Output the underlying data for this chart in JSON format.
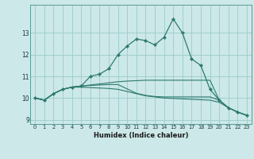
{
  "title": "",
  "xlabel": "Humidex (Indice chaleur)",
  "ylabel": "",
  "background_color": "#cce8e8",
  "grid_color": "#99cccc",
  "line_color": "#2d7a6e",
  "xlim": [
    -0.5,
    23.5
  ],
  "ylim": [
    8.8,
    14.3
  ],
  "yticks": [
    9,
    10,
    11,
    12,
    13
  ],
  "xticks": [
    0,
    1,
    2,
    3,
    4,
    5,
    6,
    7,
    8,
    9,
    10,
    11,
    12,
    13,
    14,
    15,
    16,
    17,
    18,
    19,
    20,
    21,
    22,
    23
  ],
  "series": [
    [
      10.0,
      9.9,
      10.2,
      10.4,
      10.5,
      10.55,
      11.0,
      11.1,
      11.35,
      12.0,
      12.4,
      12.72,
      12.65,
      12.45,
      12.8,
      13.65,
      13.0,
      11.8,
      11.5,
      10.4,
      9.9,
      9.55,
      9.35,
      9.2
    ],
    [
      10.0,
      9.9,
      10.2,
      10.4,
      10.5,
      10.55,
      10.6,
      10.65,
      10.7,
      10.75,
      10.78,
      10.8,
      10.82,
      10.82,
      10.82,
      10.82,
      10.82,
      10.82,
      10.82,
      10.82,
      9.9,
      9.55,
      9.35,
      9.2
    ],
    [
      10.0,
      9.9,
      10.2,
      10.4,
      10.5,
      10.55,
      10.58,
      10.6,
      10.62,
      10.62,
      10.42,
      10.22,
      10.12,
      10.07,
      10.05,
      10.05,
      10.05,
      10.05,
      10.05,
      10.05,
      9.9,
      9.55,
      9.35,
      9.2
    ],
    [
      10.0,
      9.9,
      10.2,
      10.4,
      10.5,
      10.5,
      10.48,
      10.46,
      10.44,
      10.4,
      10.3,
      10.2,
      10.1,
      10.05,
      10.0,
      9.98,
      9.96,
      9.94,
      9.92,
      9.9,
      9.8,
      9.55,
      9.35,
      9.2
    ]
  ]
}
